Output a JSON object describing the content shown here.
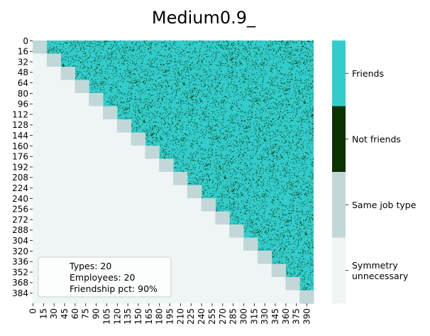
{
  "chart_data": {
    "type": "heatmap",
    "title": "Medium0.9_",
    "xlabel": "",
    "ylabel": "",
    "n": 400,
    "block_size": 20,
    "y_ticks": [
      0,
      16,
      32,
      48,
      64,
      80,
      96,
      112,
      128,
      144,
      160,
      176,
      192,
      208,
      224,
      240,
      256,
      272,
      288,
      304,
      320,
      336,
      352,
      368,
      384
    ],
    "x_ticks": [
      0,
      15,
      30,
      45,
      60,
      75,
      90,
      105,
      120,
      135,
      150,
      165,
      180,
      195,
      210,
      225,
      240,
      255,
      270,
      285,
      300,
      315,
      330,
      345,
      360,
      375,
      390
    ],
    "categories": [
      {
        "label": "Friends",
        "color": "#33cccc"
      },
      {
        "label": "Not friends",
        "color": "#0a3300"
      },
      {
        "label": "Same job type",
        "color": "#c2d8d8"
      },
      {
        "label": "Symmetry\nunnecessary",
        "color": "#eff5f5"
      }
    ],
    "friendship_pct": 0.9,
    "annotation": {
      "lines": [
        "Types: 20",
        "Employees: 20",
        "Friendship pct: 90%"
      ]
    }
  }
}
